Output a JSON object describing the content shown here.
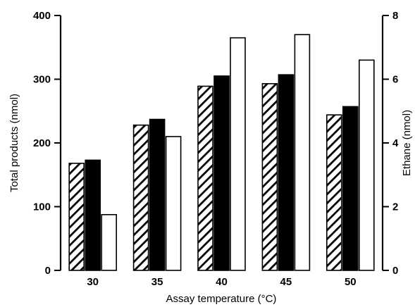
{
  "chart_data": {
    "type": "bar",
    "categories": [
      "30",
      "35",
      "40",
      "45",
      "50"
    ],
    "series": [
      {
        "axis": "left",
        "fill": "hatched",
        "values": [
          168,
          228,
          289,
          293,
          244
        ]
      },
      {
        "axis": "left",
        "fill": "solid-black",
        "values": [
          173,
          237,
          305,
          307,
          257
        ]
      },
      {
        "axis": "right",
        "fill": "white",
        "values": [
          1.75,
          4.2,
          7.3,
          7.4,
          6.6
        ]
      }
    ],
    "xlabel": "Assay temperature (°C)",
    "ylabel_left": "Total products (nmol)",
    "ylabel_right": "Ethane (nmol)",
    "ylim_left": [
      0,
      400
    ],
    "ylim_right": [
      0,
      8
    ],
    "yticks_left": [
      "0",
      "100",
      "200",
      "300",
      "400"
    ],
    "yticks_right": [
      "0",
      "2",
      "4",
      "6",
      "8"
    ],
    "grid": false,
    "legend": false
  }
}
